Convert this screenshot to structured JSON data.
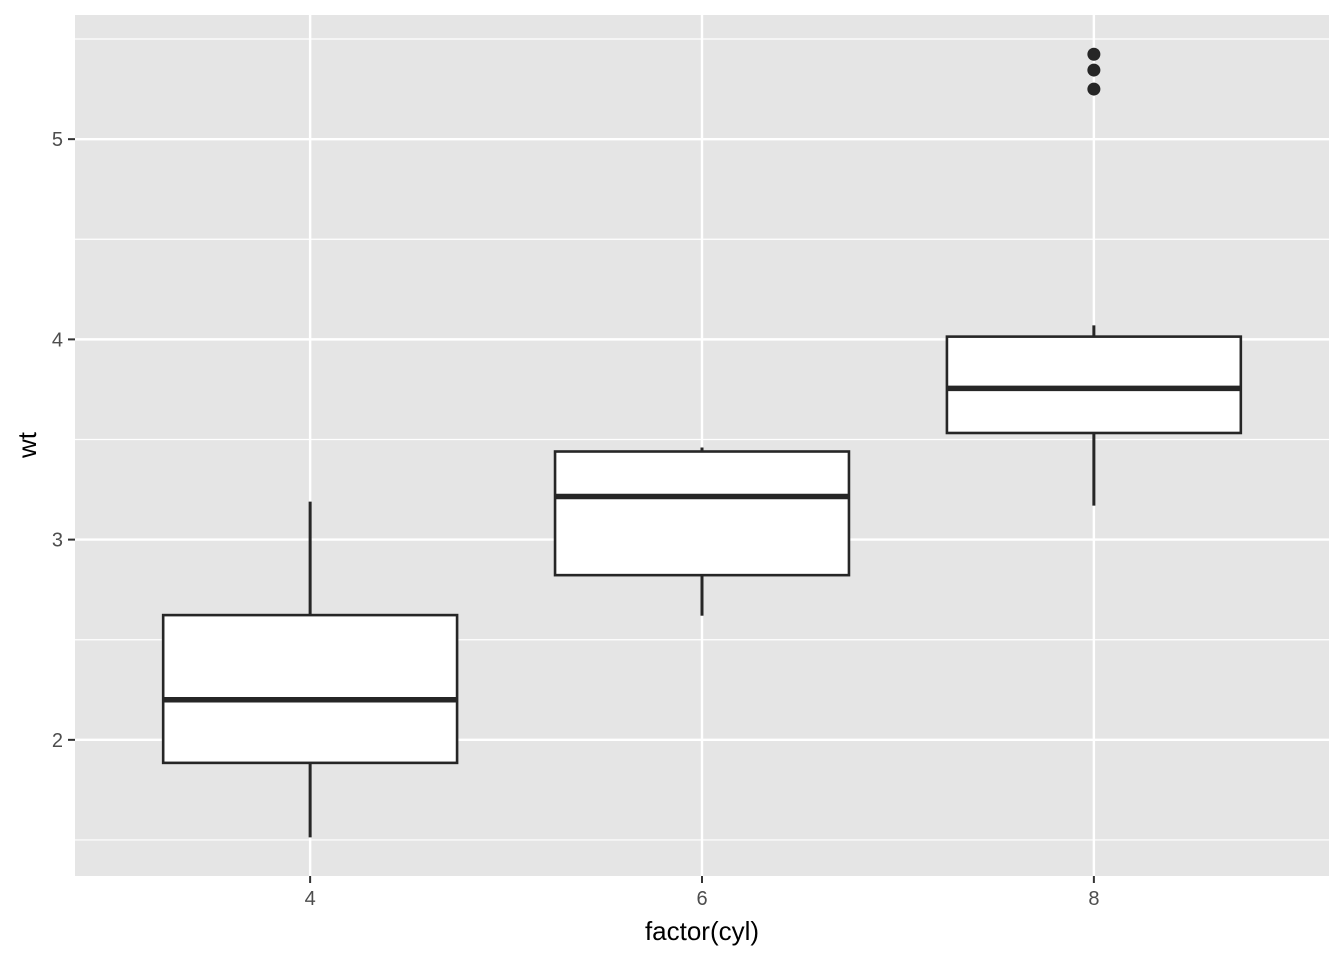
{
  "chart_data": {
    "type": "boxplot",
    "title": "",
    "xlabel": "factor(cyl)",
    "ylabel": "wt",
    "categories": [
      "4",
      "6",
      "8"
    ],
    "ylim": [
      1.32,
      5.62
    ],
    "y_ticks": [
      2,
      3,
      4,
      5
    ],
    "grid": true,
    "colors": {
      "panel_background": "#e5e5e5",
      "grid": "#ffffff",
      "box_fill": "#ffffff",
      "box_stroke": "#262626",
      "tick_label": "#4d4d4d"
    },
    "boxes": [
      {
        "category": "4",
        "whisker_low": 1.513,
        "q1": 1.885,
        "median": 2.2,
        "q3": 2.623,
        "whisker_high": 3.19,
        "outliers": []
      },
      {
        "category": "6",
        "whisker_low": 2.62,
        "q1": 2.8225,
        "median": 3.215,
        "q3": 3.44,
        "whisker_high": 3.46,
        "outliers": []
      },
      {
        "category": "8",
        "whisker_low": 3.17,
        "q1": 3.5325,
        "median": 3.755,
        "q3": 4.01375,
        "whisker_high": 4.07,
        "outliers": [
          5.25,
          5.345,
          5.424
        ]
      }
    ]
  }
}
